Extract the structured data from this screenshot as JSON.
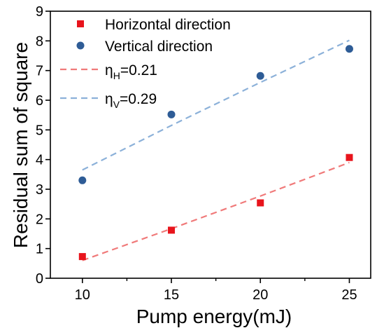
{
  "chart_data": {
    "type": "scatter",
    "xlabel": "Pump energy(mJ)",
    "ylabel": "Residual sum of square",
    "xlim": [
      8.2,
      26.2
    ],
    "ylim": [
      0,
      9
    ],
    "x_ticks": [
      10,
      15,
      20,
      25
    ],
    "y_ticks": [
      0,
      1,
      2,
      3,
      4,
      5,
      6,
      7,
      8,
      9
    ],
    "grid": false,
    "legend_position": "top-left",
    "series": [
      {
        "name": "Horizontal direction",
        "marker": "square",
        "color": "#e8141c",
        "x": [
          10,
          15,
          20,
          25
        ],
        "y": [
          0.73,
          1.62,
          2.54,
          4.07
        ]
      },
      {
        "name": "Vertical direction",
        "marker": "circle",
        "color": "#2e5c96",
        "x": [
          10,
          15,
          20,
          25
        ],
        "y": [
          3.3,
          5.52,
          6.82,
          7.73
        ]
      }
    ],
    "fits": [
      {
        "name_main": "η",
        "name_sub": "H",
        "name_value": "=0.21",
        "style": "dashed",
        "color": "#f07a7a",
        "x": [
          10,
          15,
          20,
          25
        ],
        "y": [
          0.6,
          1.67,
          2.77,
          3.9
        ]
      },
      {
        "name_main": "η",
        "name_sub": "V",
        "name_value": "=0.29",
        "style": "dashed",
        "color": "#8cb1d9",
        "x": [
          10,
          15,
          20,
          25
        ],
        "y": [
          3.65,
          5.15,
          6.6,
          8.02
        ]
      }
    ]
  }
}
